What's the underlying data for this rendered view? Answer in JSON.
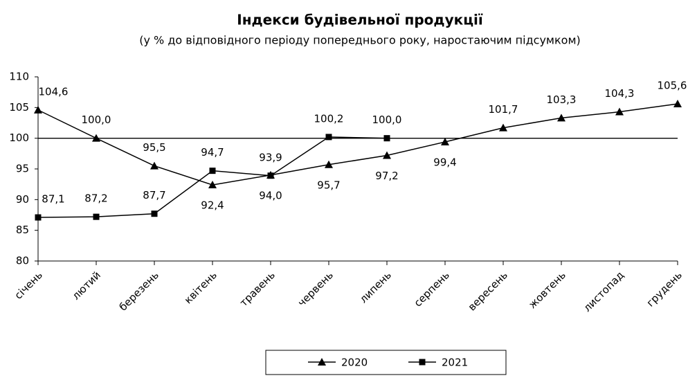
{
  "chart_data": {
    "type": "line",
    "title": "Індекси будівельної продукції",
    "subtitle": "(у % до відповідного періоду попереднього року, наростаючим підсумком)",
    "categories": [
      "січень",
      "лютий",
      "березень",
      "квітень",
      "травень",
      "червень",
      "липень",
      "серпень",
      "вересень",
      "жовтень",
      "листопад",
      "грудень"
    ],
    "series": [
      {
        "name": "2020",
        "color": "#000000",
        "marker": "triangle",
        "values": [
          104.6,
          100.0,
          95.5,
          92.4,
          94.0,
          95.7,
          97.2,
          99.4,
          101.7,
          103.3,
          104.3,
          105.6
        ],
        "value_labels": [
          "104,6",
          "100,0",
          "95,5",
          "92,4",
          "94,0",
          "95,7",
          "97,2",
          "99,4",
          "101,7",
          "103,3",
          "104,3",
          "105,6"
        ]
      },
      {
        "name": "2021",
        "color": "#000000",
        "marker": "square",
        "values": [
          87.1,
          87.2,
          87.7,
          94.7,
          93.9,
          100.2,
          100.0,
          null,
          null,
          null,
          null,
          null
        ],
        "value_labels": [
          "87,1",
          "87,2",
          "87,7",
          "94,7",
          "93,9",
          "100,2",
          "100,0",
          null,
          null,
          null,
          null,
          null
        ]
      }
    ],
    "reference_line": 100,
    "ylim": [
      80,
      110
    ],
    "yticks": [
      80,
      85,
      90,
      95,
      100,
      105,
      110
    ],
    "grid": false,
    "legend": "bottom"
  }
}
